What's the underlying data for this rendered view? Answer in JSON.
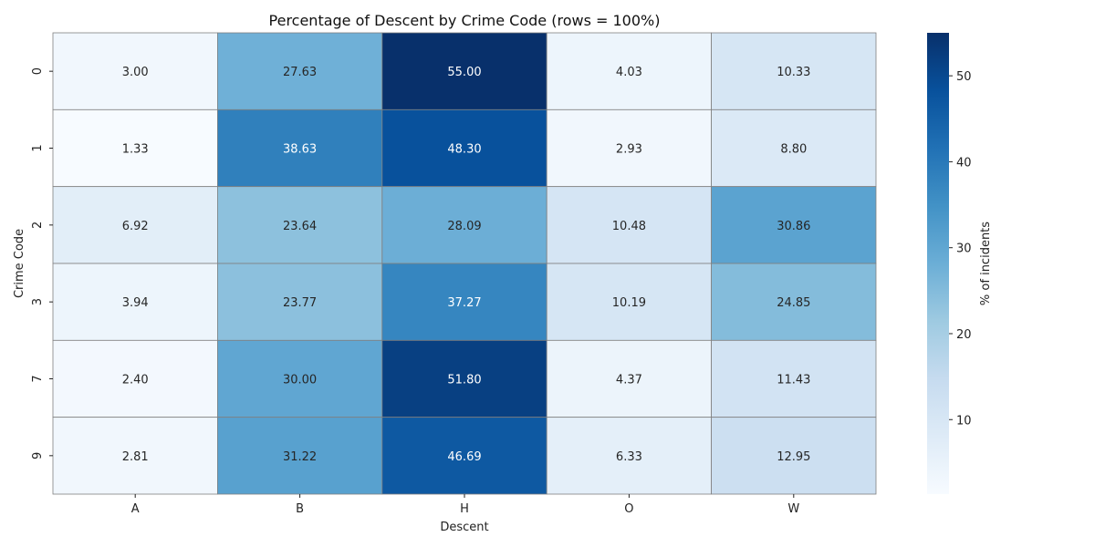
{
  "chart_data": {
    "type": "heatmap",
    "title": "Percentage of Descent by Crime Code (rows = 100%)",
    "xlabel": "Descent",
    "ylabel": "Crime Code",
    "x_categories": [
      "A",
      "B",
      "H",
      "O",
      "W"
    ],
    "y_categories": [
      "0",
      "1",
      "2",
      "3",
      "7",
      "9"
    ],
    "values": [
      [
        3.0,
        27.63,
        55.0,
        4.03,
        10.33
      ],
      [
        1.33,
        38.63,
        48.3,
        2.93,
        8.8
      ],
      [
        6.92,
        23.64,
        28.09,
        10.48,
        30.86
      ],
      [
        3.94,
        23.77,
        37.27,
        10.19,
        24.85
      ],
      [
        2.4,
        30.0,
        51.8,
        4.37,
        11.43
      ],
      [
        2.81,
        31.22,
        46.69,
        6.33,
        12.95
      ]
    ],
    "cell_labels": [
      [
        "3.00",
        "27.63",
        "55.00",
        "4.03",
        "10.33"
      ],
      [
        "1.33",
        "38.63",
        "48.30",
        "2.93",
        "8.80"
      ],
      [
        "6.92",
        "23.64",
        "28.09",
        "10.48",
        "30.86"
      ],
      [
        "3.94",
        "23.77",
        "37.27",
        "10.19",
        "24.85"
      ],
      [
        "2.40",
        "30.00",
        "51.80",
        "4.37",
        "11.43"
      ],
      [
        "2.81",
        "31.22",
        "46.69",
        "6.33",
        "12.95"
      ]
    ],
    "colormap": "Blues",
    "colormap_stops": [
      "#f7fbff",
      "#deebf7",
      "#c6dbef",
      "#9ecae1",
      "#6baed6",
      "#4292c6",
      "#2171b5",
      "#08519c",
      "#08306b"
    ],
    "grid_line_color": "#808080",
    "colorbar": {
      "label": "% of incidents",
      "ticks": [
        "10",
        "20",
        "30",
        "40",
        "50"
      ],
      "tick_values": [
        10,
        20,
        30,
        40,
        50
      ],
      "range": [
        1.33,
        55.0
      ]
    }
  }
}
